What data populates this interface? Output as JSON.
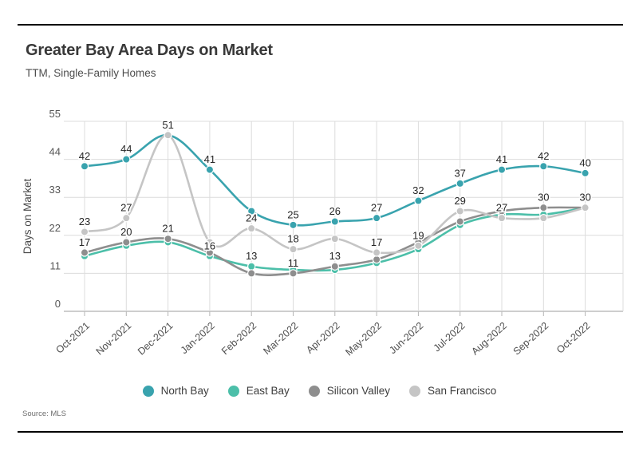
{
  "page": {
    "title": "Greater Bay Area Days on Market",
    "subtitle": "TTM, Single-Family Homes",
    "source": "Source: MLS"
  },
  "chart_data": {
    "type": "line",
    "title": "Greater Bay Area Days on Market",
    "subtitle": "TTM, Single-Family Homes",
    "xlabel": "",
    "ylabel": "Days on Market",
    "ylim": [
      0,
      55
    ],
    "yticks": [
      0,
      11,
      22,
      33,
      44,
      55
    ],
    "grid": true,
    "legend_position": "bottom",
    "categories": [
      "Oct-2021",
      "Nov-2021",
      "Dec-2021",
      "Jan-2022",
      "Feb-2022",
      "Mar-2022",
      "Apr-2022",
      "May-2022",
      "Jun-2022",
      "Jul-2022",
      "Aug-2022",
      "Sep-2022",
      "Oct-2022"
    ],
    "series": [
      {
        "name": "North Bay",
        "color": "#39a3ae",
        "values": [
          42,
          44,
          51,
          41,
          29,
          25,
          26,
          27,
          32,
          37,
          41,
          42,
          40
        ],
        "point_labels": [
          42,
          44,
          null,
          41,
          null,
          25,
          26,
          27,
          32,
          37,
          41,
          42,
          40
        ]
      },
      {
        "name": "East Bay",
        "color": "#4cbfa9",
        "values": [
          16,
          19,
          20,
          16,
          13,
          12,
          12,
          14,
          18,
          25,
          28,
          28,
          30
        ],
        "point_labels": [
          null,
          null,
          null,
          16,
          13,
          null,
          null,
          null,
          null,
          null,
          null,
          null,
          30
        ]
      },
      {
        "name": "Silicon Valley",
        "color": "#8e8e8e",
        "values": [
          17,
          20,
          21,
          17,
          11,
          11,
          13,
          15,
          20,
          26,
          29,
          30,
          30
        ],
        "point_labels": [
          17,
          20,
          21,
          null,
          null,
          11,
          13,
          null,
          null,
          null,
          null,
          30,
          null
        ]
      },
      {
        "name": "San Francisco",
        "color": "#c5c5c5",
        "values": [
          23,
          27,
          51,
          20,
          24,
          18,
          21,
          17,
          19,
          29,
          27,
          27,
          30
        ],
        "point_labels": [
          23,
          27,
          51,
          null,
          24,
          18,
          null,
          17,
          19,
          29,
          27,
          null,
          null
        ]
      }
    ],
    "source": "Source: MLS"
  }
}
